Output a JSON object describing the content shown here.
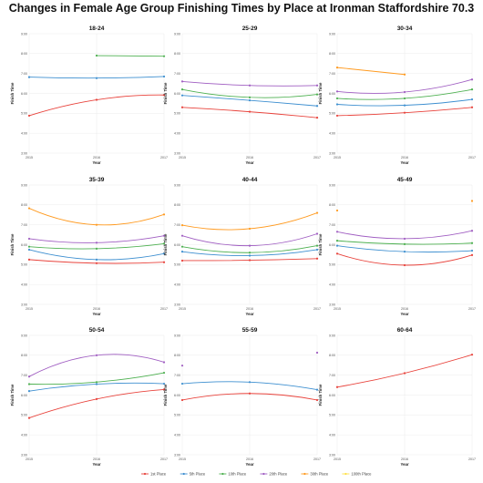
{
  "title": "Changes in Female Age Group Finishing Times by Place at Ironman Staffordshire 70.3",
  "chart_data": {
    "type": "line",
    "xlabel": "Year",
    "ylabel": "Finish Time",
    "x": [
      2015,
      2016,
      2017
    ],
    "x_tick_labels": [
      "2015",
      "2016",
      "2017"
    ],
    "y_ticks": [
      3,
      4,
      5,
      6,
      7,
      8,
      9
    ],
    "y_tick_labels": [
      "3:00",
      "4:00",
      "5:00",
      "6:00",
      "7:00",
      "8:00",
      "9:00"
    ],
    "ylim": [
      3,
      9
    ],
    "legend": {
      "placement": "bottom",
      "entries": [
        {
          "name": "1st Place",
          "color": "#e8423b"
        },
        {
          "name": "5th Place",
          "color": "#3d8fd0"
        },
        {
          "name": "10th Place",
          "color": "#4db050"
        },
        {
          "name": "20th Place",
          "color": "#a05ec2"
        },
        {
          "name": "30th Place",
          "color": "#ff9a1f"
        },
        {
          "name": "100th Place",
          "color": "#ffe047"
        }
      ]
    },
    "panels": [
      {
        "title": "18-24",
        "series": [
          {
            "name": "1st Place",
            "values": [
              4.88,
              5.68,
              5.92
            ]
          },
          {
            "name": "5th Place",
            "values": [
              6.82,
              6.77,
              6.85
            ]
          },
          {
            "name": "10th Place",
            "values": [
              null,
              7.9,
              7.87
            ]
          }
        ]
      },
      {
        "title": "25-29",
        "series": [
          {
            "name": "1st Place",
            "values": [
              5.3,
              5.08,
              4.78
            ]
          },
          {
            "name": "5th Place",
            "values": [
              5.9,
              5.65,
              5.37
            ]
          },
          {
            "name": "10th Place",
            "values": [
              6.2,
              5.8,
              5.95
            ]
          },
          {
            "name": "20th Place",
            "values": [
              6.6,
              6.4,
              6.4
            ]
          }
        ]
      },
      {
        "title": "30-34",
        "series": [
          {
            "name": "1st Place",
            "values": [
              4.88,
              5.03,
              5.3
            ]
          },
          {
            "name": "5th Place",
            "values": [
              5.45,
              5.4,
              5.7
            ]
          },
          {
            "name": "10th Place",
            "values": [
              5.75,
              5.75,
              6.2
            ]
          },
          {
            "name": "20th Place",
            "values": [
              6.1,
              6.07,
              6.7
            ]
          },
          {
            "name": "30th Place",
            "values": [
              7.3,
              6.95,
              null
            ]
          }
        ]
      },
      {
        "title": "35-39",
        "series": [
          {
            "name": "1st Place",
            "values": [
              5.25,
              5.07,
              5.12
            ]
          },
          {
            "name": "5th Place",
            "values": [
              5.75,
              5.25,
              5.55
            ]
          },
          {
            "name": "10th Place",
            "values": [
              5.9,
              5.8,
              6.05
            ]
          },
          {
            "name": "20th Place",
            "values": [
              6.3,
              6.1,
              6.45
            ]
          },
          {
            "name": "30th Place",
            "values": [
              7.83,
              7.0,
              7.52
            ]
          }
        ]
      },
      {
        "title": "40-44",
        "series": [
          {
            "name": "1st Place",
            "values": [
              5.2,
              5.22,
              5.3
            ]
          },
          {
            "name": "5th Place",
            "values": [
              5.65,
              5.45,
              5.75
            ]
          },
          {
            "name": "10th Place",
            "values": [
              5.9,
              5.6,
              5.95
            ]
          },
          {
            "name": "20th Place",
            "values": [
              6.45,
              5.95,
              6.55
            ]
          },
          {
            "name": "30th Place",
            "values": [
              6.98,
              6.8,
              7.6
            ]
          }
        ]
      },
      {
        "title": "45-49",
        "series": [
          {
            "name": "1st Place",
            "values": [
              5.55,
              4.97,
              5.48
            ]
          },
          {
            "name": "5th Place",
            "values": [
              5.95,
              5.65,
              5.7
            ]
          },
          {
            "name": "10th Place",
            "values": [
              6.2,
              6.03,
              6.08
            ]
          },
          {
            "name": "20th Place",
            "values": [
              6.65,
              6.3,
              6.7
            ]
          },
          {
            "name": "30th Place",
            "values": [
              7.72,
              null,
              8.2
            ]
          }
        ]
      },
      {
        "title": "50-54",
        "series": [
          {
            "name": "1st Place",
            "values": [
              4.85,
              5.8,
              6.28
            ]
          },
          {
            "name": "5th Place",
            "values": [
              6.2,
              6.55,
              6.57
            ]
          },
          {
            "name": "10th Place",
            "values": [
              6.55,
              6.65,
              7.12
            ]
          },
          {
            "name": "20th Place",
            "values": [
              6.93,
              8.0,
              7.65
            ]
          }
        ]
      },
      {
        "title": "55-59",
        "series": [
          {
            "name": "1st Place",
            "values": [
              5.75,
              6.08,
              5.75
            ]
          },
          {
            "name": "5th Place",
            "values": [
              6.57,
              6.65,
              6.27
            ]
          },
          {
            "name": "20th Place",
            "values": [
              7.48,
              null,
              8.13
            ]
          }
        ]
      },
      {
        "title": "60-64",
        "series": [
          {
            "name": "1st Place",
            "values": [
              6.4,
              7.1,
              8.03
            ]
          }
        ]
      }
    ]
  }
}
